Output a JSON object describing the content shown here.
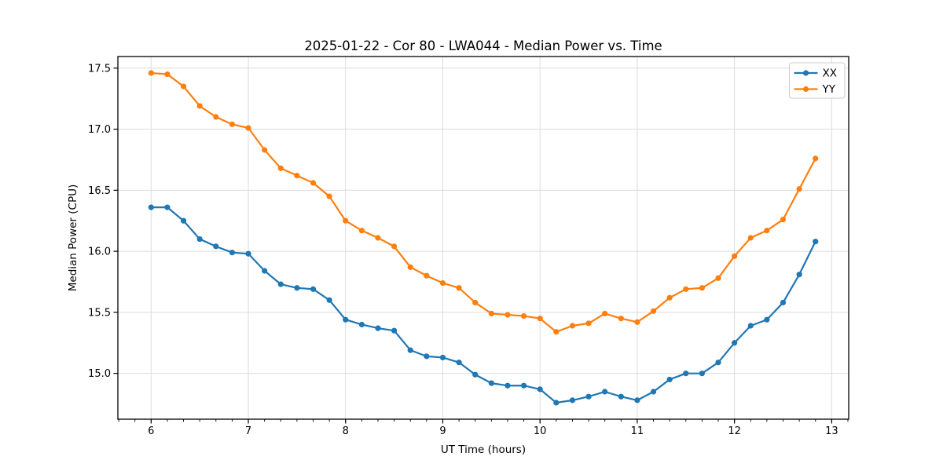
{
  "figure": {
    "title": "2025-01-22 - Cor 80 - LWA044 - Median Power vs. Time",
    "background": "#ffffff"
  },
  "chart_data": {
    "type": "line",
    "title": "2025-01-22 - Cor 80 - LWA044 - Median Power vs. Time",
    "xlabel": "UT Time (hours)",
    "ylabel": "Median Power (CPU)",
    "xlim": [
      5.658,
      13.175
    ],
    "ylim": [
      14.625,
      17.595
    ],
    "x_major_ticks": [
      6,
      7,
      8,
      9,
      10,
      11,
      12,
      13
    ],
    "x_tick_labels": [
      "6",
      "7",
      "8",
      "9",
      "10",
      "11",
      "12",
      "13"
    ],
    "x_minor_tick_step": 0.166667,
    "y_major_ticks": [
      15.0,
      15.5,
      16.0,
      16.5,
      17.0,
      17.5
    ],
    "y_tick_labels": [
      "15.0",
      "15.5",
      "16.0",
      "16.5",
      "17.0",
      "17.5"
    ],
    "grid": true,
    "grid_color": "#dcdcdc",
    "axis_color": "#000000",
    "legend": {
      "position": "upper right",
      "entries": [
        "XX",
        "YY"
      ]
    },
    "x": [
      6.0,
      6.1667,
      6.3333,
      6.5,
      6.6667,
      6.8333,
      7.0,
      7.1667,
      7.3333,
      7.5,
      7.6667,
      7.8333,
      8.0,
      8.1667,
      8.3333,
      8.5,
      8.6667,
      8.8333,
      9.0,
      9.1667,
      9.3333,
      9.5,
      9.6667,
      9.8333,
      10.0,
      10.1667,
      10.3333,
      10.5,
      10.6667,
      10.8333,
      11.0,
      11.1667,
      11.3333,
      11.5,
      11.6667,
      11.8333,
      12.0,
      12.1667,
      12.3333,
      12.5,
      12.6667,
      12.8333
    ],
    "series": [
      {
        "name": "XX",
        "color": "#1f77b4",
        "values": [
          16.36,
          16.36,
          16.25,
          16.1,
          16.04,
          15.99,
          15.98,
          15.84,
          15.73,
          15.7,
          15.69,
          15.6,
          15.44,
          15.4,
          15.37,
          15.35,
          15.19,
          15.14,
          15.13,
          15.09,
          14.99,
          14.92,
          14.9,
          14.9,
          14.87,
          14.76,
          14.78,
          14.81,
          14.85,
          14.81,
          14.78,
          14.85,
          14.95,
          15.0,
          15.0,
          15.09,
          15.25,
          15.39,
          15.44,
          15.58,
          15.81,
          16.08
        ]
      },
      {
        "name": "YY",
        "color": "#ff7f0e",
        "values": [
          17.46,
          17.45,
          17.35,
          17.19,
          17.1,
          17.04,
          17.01,
          16.83,
          16.68,
          16.62,
          16.56,
          16.45,
          16.25,
          16.17,
          16.11,
          16.04,
          15.87,
          15.8,
          15.74,
          15.7,
          15.58,
          15.49,
          15.48,
          15.47,
          15.45,
          15.34,
          15.39,
          15.41,
          15.49,
          15.45,
          15.42,
          15.51,
          15.62,
          15.69,
          15.7,
          15.78,
          15.96,
          16.11,
          16.17,
          16.26,
          16.51,
          16.76
        ]
      }
    ]
  }
}
